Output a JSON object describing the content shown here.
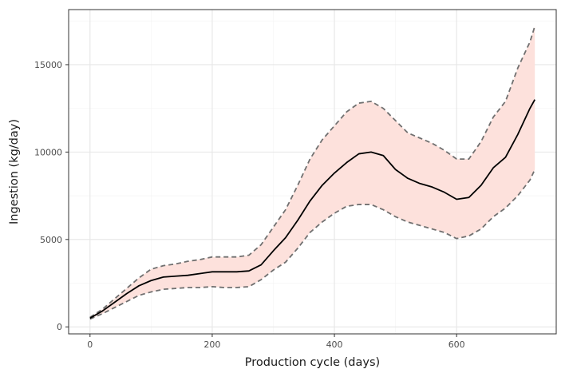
{
  "chart_data": {
    "type": "line",
    "title": "",
    "xlabel": "Production cycle (days)",
    "ylabel": "Ingestion (kg/day)",
    "xlim": [
      -35,
      763
    ],
    "ylim": [
      -400,
      18150
    ],
    "x_ticks": [
      0,
      200,
      400,
      600
    ],
    "y_ticks": [
      0,
      5000,
      10000,
      15000
    ],
    "x_tick_labels": [
      "0",
      "200",
      "400",
      "600"
    ],
    "y_tick_labels": [
      "0",
      "5000",
      "10000",
      "15000"
    ],
    "grid": true,
    "legend": "none",
    "colors": {
      "mean_line": "#000000",
      "band_fill": "#fde1dc",
      "bound_line": "#707070",
      "grid_major": "#e6e6e6",
      "grid_minor": "#f3f3f3",
      "panel_border": "#333333"
    },
    "series": [
      {
        "role": "mean",
        "style": "solid",
        "x": [
          0,
          20,
          40,
          60,
          80,
          100,
          120,
          140,
          160,
          180,
          200,
          220,
          240,
          260,
          280,
          300,
          320,
          340,
          360,
          380,
          400,
          420,
          440,
          460,
          480,
          500,
          520,
          540,
          560,
          580,
          600,
          620,
          640,
          660,
          680,
          700,
          720,
          728
        ],
        "y": [
          500,
          900,
          1400,
          1900,
          2350,
          2650,
          2850,
          2900,
          2950,
          3050,
          3150,
          3150,
          3150,
          3200,
          3550,
          4350,
          5100,
          6100,
          7200,
          8100,
          8800,
          9400,
          9900,
          10000,
          9800,
          9000,
          8500,
          8200,
          8000,
          7700,
          7300,
          7400,
          8100,
          9100,
          9700,
          11000,
          12500,
          13000
        ]
      },
      {
        "role": "upper",
        "style": "dashed",
        "x": [
          0,
          20,
          40,
          60,
          80,
          100,
          120,
          140,
          160,
          180,
          200,
          220,
          240,
          260,
          280,
          300,
          320,
          340,
          360,
          380,
          400,
          420,
          440,
          460,
          480,
          500,
          520,
          540,
          560,
          580,
          600,
          620,
          640,
          660,
          680,
          700,
          720,
          728
        ],
        "y": [
          550,
          1000,
          1600,
          2200,
          2800,
          3300,
          3500,
          3600,
          3750,
          3850,
          4000,
          4000,
          4000,
          4100,
          4700,
          5700,
          6700,
          8100,
          9600,
          10700,
          11500,
          12300,
          12800,
          12900,
          12500,
          11800,
          11100,
          10800,
          10500,
          10100,
          9600,
          9600,
          10600,
          12000,
          12900,
          14800,
          16300,
          17200
        ]
      },
      {
        "role": "lower",
        "style": "dashed",
        "x": [
          0,
          20,
          40,
          60,
          80,
          100,
          120,
          140,
          160,
          180,
          200,
          220,
          240,
          260,
          280,
          300,
          320,
          340,
          360,
          380,
          400,
          420,
          440,
          460,
          480,
          500,
          520,
          540,
          560,
          580,
          600,
          620,
          640,
          660,
          680,
          700,
          720,
          728
        ],
        "y": [
          450,
          750,
          1100,
          1450,
          1800,
          2000,
          2150,
          2200,
          2250,
          2250,
          2300,
          2250,
          2250,
          2300,
          2700,
          3250,
          3700,
          4500,
          5400,
          6000,
          6500,
          6900,
          7000,
          7000,
          6700,
          6300,
          6000,
          5800,
          5600,
          5400,
          5050,
          5200,
          5600,
          6300,
          6800,
          7500,
          8400,
          9000
        ]
      }
    ]
  }
}
